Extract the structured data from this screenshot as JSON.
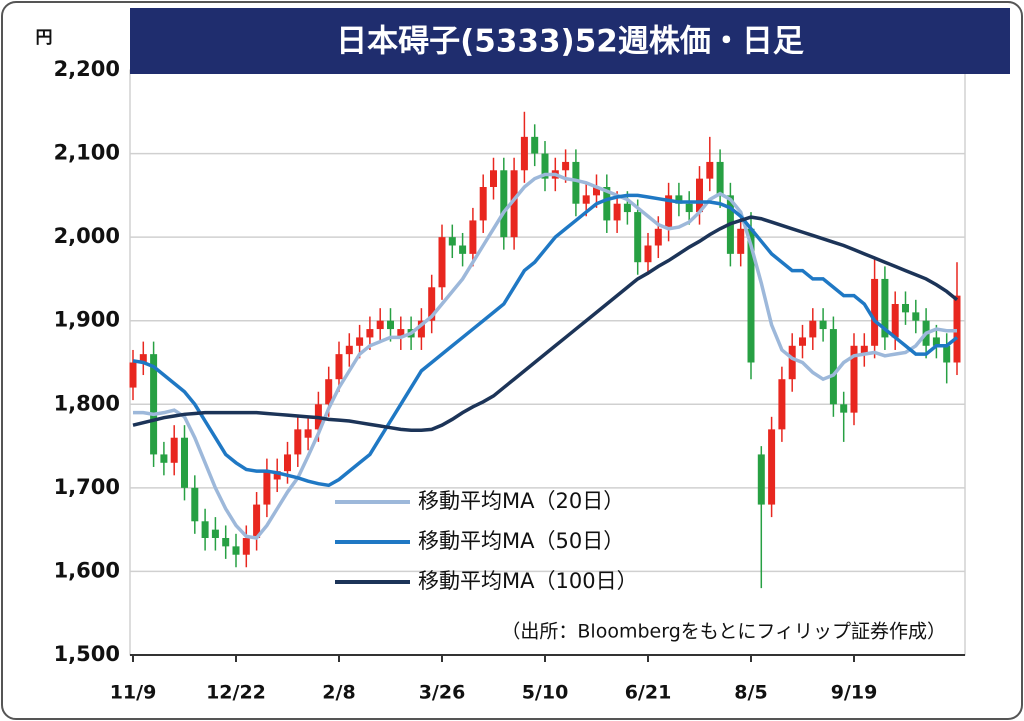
{
  "chart_data": {
    "type": "candlestick",
    "title": "日本碍子(5333)52週株価・日足",
    "y_unit": "円",
    "note": "（出所：Bloombergをもとにフィリップ証券作成）",
    "categories": [
      "11/9",
      null,
      null,
      null,
      null,
      null,
      null,
      null,
      null,
      null,
      "12/22",
      null,
      null,
      null,
      null,
      null,
      null,
      null,
      null,
      null,
      "2/8",
      null,
      null,
      null,
      null,
      null,
      null,
      null,
      null,
      null,
      "3/26",
      null,
      null,
      null,
      null,
      null,
      null,
      null,
      null,
      null,
      "5/10",
      null,
      null,
      null,
      null,
      null,
      null,
      null,
      null,
      null,
      "6/21",
      null,
      null,
      null,
      null,
      null,
      null,
      null,
      null,
      null,
      "8/5",
      null,
      null,
      null,
      null,
      null,
      null,
      null,
      null,
      null,
      "9/19",
      null,
      null,
      null,
      null,
      null,
      null,
      null,
      null,
      null,
      null
    ],
    "open": [
      1820,
      1850,
      1860,
      1740,
      1730,
      1760,
      1700,
      1660,
      1650,
      1640,
      1630,
      1620,
      1640,
      1680,
      1710,
      1720,
      1740,
      1760,
      1770,
      1800,
      1830,
      1860,
      1870,
      1880,
      1890,
      1900,
      1880,
      1890,
      1880,
      1900,
      1940,
      2000,
      1990,
      1980,
      2020,
      2060,
      2080,
      2000,
      2080,
      2120,
      2100,
      2070,
      2080,
      2090,
      2040,
      2050,
      2060,
      2020,
      2040,
      2030,
      1970,
      1990,
      2010,
      2050,
      2040,
      2030,
      2070,
      2090,
      2050,
      1980,
      2010,
      1740,
      1680,
      1770,
      1830,
      1870,
      1880,
      1900,
      1890,
      1800,
      1790,
      1860,
      1870,
      1950,
      1880,
      1920,
      1910,
      1900,
      1880,
      1870,
      1850
    ],
    "high": [
      1865,
      1875,
      1875,
      1755,
      1775,
      1775,
      1715,
      1675,
      1665,
      1655,
      1645,
      1655,
      1695,
      1735,
      1735,
      1755,
      1785,
      1785,
      1815,
      1845,
      1875,
      1885,
      1895,
      1905,
      1915,
      1915,
      1905,
      1905,
      1915,
      1955,
      2015,
      2015,
      2005,
      2035,
      2075,
      2095,
      2095,
      2095,
      2150,
      2135,
      2115,
      2095,
      2105,
      2105,
      2065,
      2075,
      2075,
      2055,
      2055,
      2045,
      2005,
      2025,
      2065,
      2065,
      2055,
      2085,
      2120,
      2105,
      2065,
      2025,
      2030,
      1750,
      1785,
      1845,
      1885,
      1895,
      1915,
      1915,
      1905,
      1815,
      1885,
      1885,
      1975,
      1965,
      1935,
      1935,
      1925,
      1915,
      1895,
      1885,
      1970
    ],
    "low": [
      1805,
      1835,
      1725,
      1715,
      1715,
      1685,
      1645,
      1625,
      1625,
      1615,
      1605,
      1605,
      1625,
      1665,
      1695,
      1705,
      1725,
      1745,
      1755,
      1785,
      1815,
      1845,
      1855,
      1865,
      1875,
      1875,
      1865,
      1865,
      1865,
      1885,
      1925,
      1975,
      1965,
      1965,
      2005,
      2045,
      1985,
      1985,
      2065,
      2085,
      2055,
      2055,
      2065,
      2025,
      2025,
      2035,
      2005,
      2005,
      2015,
      1955,
      1955,
      1975,
      1995,
      2025,
      2015,
      2015,
      2055,
      2035,
      1965,
      1965,
      1830,
      1580,
      1665,
      1755,
      1815,
      1855,
      1865,
      1875,
      1785,
      1755,
      1775,
      1845,
      1855,
      1865,
      1865,
      1895,
      1885,
      1855,
      1855,
      1825,
      1835
    ],
    "close": [
      1850,
      1860,
      1740,
      1730,
      1760,
      1700,
      1660,
      1640,
      1640,
      1630,
      1620,
      1640,
      1680,
      1720,
      1720,
      1740,
      1770,
      1770,
      1800,
      1830,
      1860,
      1870,
      1880,
      1890,
      1900,
      1890,
      1890,
      1880,
      1900,
      1940,
      2000,
      1990,
      1980,
      2020,
      2060,
      2080,
      2000,
      2080,
      2120,
      2100,
      2070,
      2080,
      2090,
      2040,
      2050,
      2060,
      2020,
      2040,
      2030,
      1970,
      1990,
      2010,
      2050,
      2040,
      2030,
      2070,
      2090,
      2050,
      1980,
      2010,
      1850,
      1680,
      1770,
      1830,
      1870,
      1880,
      1900,
      1890,
      1800,
      1790,
      1870,
      1870,
      1950,
      1880,
      1920,
      1910,
      1900,
      1870,
      1870,
      1850,
      1930
    ],
    "up_color": "#e8271f",
    "down_color": "#27a043",
    "series": [
      {
        "name": "移動平均MA（20日）",
        "color": "#9db8da",
        "values": [
          1790,
          1790,
          1788,
          1790,
          1793,
          1785,
          1760,
          1730,
          1700,
          1675,
          1655,
          1642,
          1640,
          1655,
          1675,
          1695,
          1712,
          1738,
          1765,
          1795,
          1820,
          1840,
          1860,
          1870,
          1875,
          1880,
          1880,
          1885,
          1895,
          1905,
          1920,
          1935,
          1950,
          1970,
          1990,
          2010,
          2030,
          2045,
          2060,
          2070,
          2075,
          2075,
          2070,
          2068,
          2065,
          2060,
          2055,
          2050,
          2045,
          2035,
          2025,
          2015,
          2010,
          2012,
          2018,
          2030,
          2045,
          2052,
          2045,
          2030,
          1990,
          1945,
          1895,
          1865,
          1855,
          1850,
          1838,
          1830,
          1835,
          1850,
          1858,
          1860,
          1862,
          1858,
          1860,
          1862,
          1870,
          1885,
          1890,
          1888,
          1888
        ]
      },
      {
        "name": "移動平均MA（50日）",
        "color": "#1f78c4",
        "values": [
          1852,
          1850,
          1845,
          1835,
          1825,
          1815,
          1800,
          1780,
          1760,
          1740,
          1730,
          1722,
          1720,
          1720,
          1718,
          1715,
          1712,
          1708,
          1705,
          1703,
          1710,
          1720,
          1730,
          1740,
          1760,
          1780,
          1800,
          1820,
          1840,
          1850,
          1860,
          1870,
          1880,
          1890,
          1900,
          1910,
          1920,
          1940,
          1960,
          1970,
          1985,
          2000,
          2010,
          2020,
          2030,
          2040,
          2045,
          2048,
          2050,
          2050,
          2048,
          2046,
          2044,
          2042,
          2042,
          2042,
          2042,
          2040,
          2035,
          2025,
          2010,
          1995,
          1980,
          1970,
          1960,
          1960,
          1950,
          1950,
          1940,
          1930,
          1930,
          1920,
          1900,
          1890,
          1880,
          1870,
          1860,
          1860,
          1870,
          1870,
          1880
        ]
      },
      {
        "name": "移動平均MA（100日）",
        "color": "#1c3458",
        "values": [
          1775,
          1778,
          1781,
          1784,
          1786,
          1788,
          1789,
          1790,
          1790,
          1790,
          1790,
          1790,
          1790,
          1789,
          1788,
          1787,
          1786,
          1785,
          1784,
          1782,
          1781,
          1780,
          1778,
          1776,
          1774,
          1772,
          1770,
          1769,
          1769,
          1770,
          1775,
          1782,
          1790,
          1797,
          1803,
          1810,
          1820,
          1830,
          1840,
          1850,
          1860,
          1870,
          1880,
          1890,
          1900,
          1910,
          1920,
          1930,
          1940,
          1950,
          1957,
          1965,
          1972,
          1980,
          1988,
          1995,
          2003,
          2010,
          2016,
          2020,
          2024,
          2022,
          2018,
          2014,
          2010,
          2006,
          2002,
          1998,
          1994,
          1990,
          1985,
          1980,
          1975,
          1970,
          1965,
          1960,
          1955,
          1950,
          1943,
          1935,
          1925
        ]
      }
    ],
    "ylim": [
      1500,
      2200
    ],
    "yticks": [
      {
        "value": 1500,
        "label": "1,500"
      },
      {
        "value": 1600,
        "label": "1,600"
      },
      {
        "value": 1700,
        "label": "1,700"
      },
      {
        "value": 1800,
        "label": "1,800"
      },
      {
        "value": 1900,
        "label": "1,900"
      },
      {
        "value": 2000,
        "label": "2,000"
      },
      {
        "value": 2100,
        "label": "2,100"
      },
      {
        "value": 2200,
        "label": "2,200"
      }
    ],
    "grid": true,
    "legend": "center"
  }
}
